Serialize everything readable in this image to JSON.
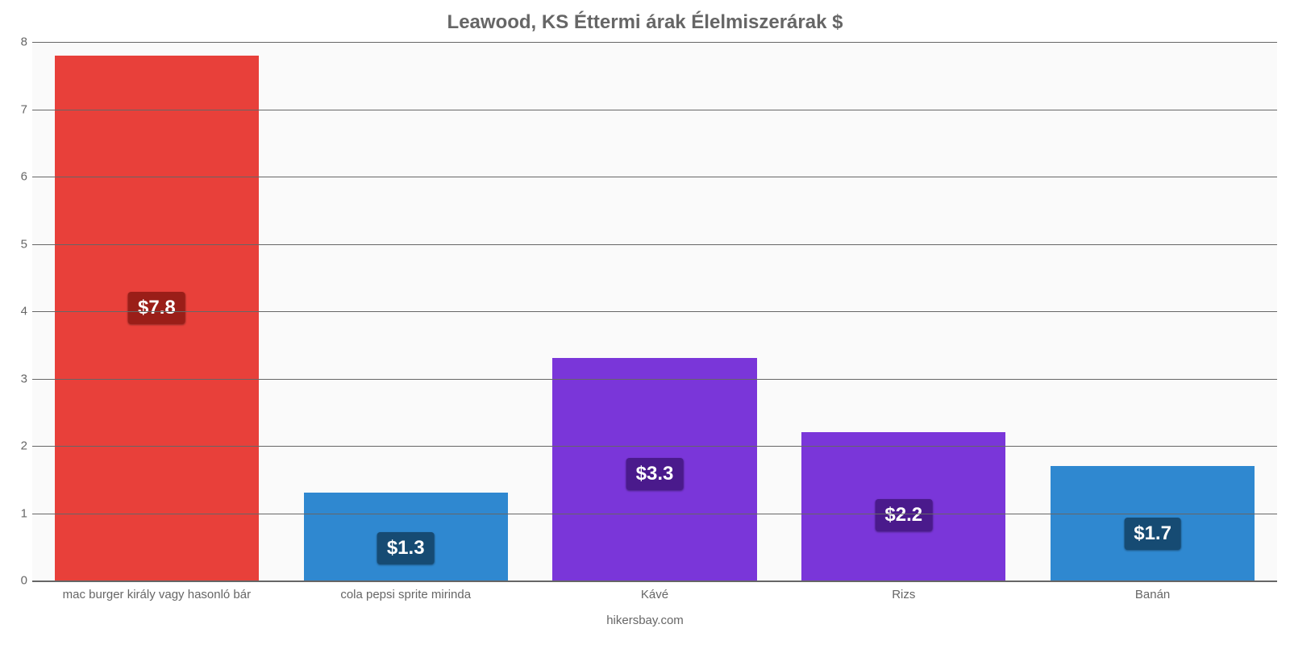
{
  "chart": {
    "type": "bar",
    "title": "Leawood, KS Éttermi árak Élelmiszerárak $",
    "title_fontsize": 24,
    "title_color": "#666666",
    "footer": "hikersbay.com",
    "footer_fontsize": 15,
    "footer_color": "#666666",
    "background_color": "#ffffff",
    "plot_background_color": "#fafafa",
    "grid_color": "#666666",
    "yaxis": {
      "min": 0,
      "max": 8,
      "tick_step": 1,
      "tick_labels": [
        "0",
        "1",
        "2",
        "3",
        "4",
        "5",
        "6",
        "7",
        "8"
      ],
      "tick_fontsize": 15,
      "tick_color": "#666666"
    },
    "xaxis": {
      "tick_fontsize": 15,
      "tick_color": "#666666"
    },
    "categories": [
      "mac burger király vagy hasonló bár",
      "cola pepsi sprite mirinda",
      "Kávé",
      "Rizs",
      "Banán"
    ],
    "values": [
      7.8,
      1.3,
      3.3,
      2.2,
      1.7
    ],
    "value_labels": [
      "$7.8",
      "$1.3",
      "$3.3",
      "$2.2",
      "$1.7"
    ],
    "bar_colors": [
      "#e8403a",
      "#2f88d0",
      "#7a36d9",
      "#7a36d9",
      "#2f88d0"
    ],
    "value_label_bg": [
      "#9a1e18",
      "#164b73",
      "#4a1a8c",
      "#4a1a8c",
      "#164b73"
    ],
    "value_label_color": "#ffffff",
    "value_label_fontsize": 24,
    "bar_width_ratio": 0.82,
    "bar_border_radius": 0
  }
}
